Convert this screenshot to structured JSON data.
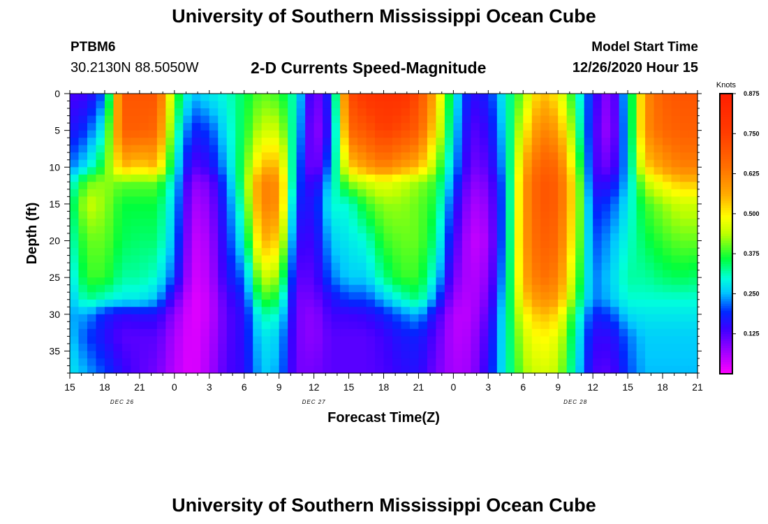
{
  "header": {
    "title": "University of Southern Mississippi Ocean Cube",
    "station_id": "PTBM6",
    "station_location": "30.2130N 88.5050W",
    "plot_title": "2-D Currents Speed-Magnitude",
    "model_start_label": "Model Start Time",
    "model_start_value": "12/26/2020 Hour 15"
  },
  "footer": {
    "title": "University of Southern Mississippi Ocean Cube"
  },
  "chart_data": {
    "type": "heatmap",
    "title": "2-D Currents Speed-Magnitude",
    "xlabel": "Forecast Time(Z)",
    "ylabel": "Depth (ft)",
    "x_range_hours": [
      0,
      54
    ],
    "x_ticks": [
      {
        "hour": 0,
        "label": "15"
      },
      {
        "hour": 3,
        "label": "18"
      },
      {
        "hour": 6,
        "label": "21"
      },
      {
        "hour": 9,
        "label": "0"
      },
      {
        "hour": 12,
        "label": "3"
      },
      {
        "hour": 15,
        "label": "6"
      },
      {
        "hour": 18,
        "label": "9"
      },
      {
        "hour": 21,
        "label": "12"
      },
      {
        "hour": 24,
        "label": "15"
      },
      {
        "hour": 27,
        "label": "18"
      },
      {
        "hour": 30,
        "label": "21"
      },
      {
        "hour": 33,
        "label": "0"
      },
      {
        "hour": 36,
        "label": "3"
      },
      {
        "hour": 39,
        "label": "6"
      },
      {
        "hour": 42,
        "label": "9"
      },
      {
        "hour": 45,
        "label": "12"
      },
      {
        "hour": 48,
        "label": "15"
      },
      {
        "hour": 51,
        "label": "18"
      },
      {
        "hour": 54,
        "label": "21"
      }
    ],
    "day_labels": [
      {
        "hour": 4.5,
        "label": "DEC  26"
      },
      {
        "hour": 21,
        "label": "DEC  27"
      },
      {
        "hour": 43.5,
        "label": "DEC  28"
      }
    ],
    "y_range_ft": [
      0,
      38
    ],
    "y_ticks": [
      0,
      5,
      10,
      15,
      20,
      25,
      30,
      35
    ],
    "colorbar": {
      "title": "Knots",
      "range": [
        0,
        0.875
      ],
      "ticks": [
        "0.125",
        "0.250",
        "0.375",
        "0.500",
        "0.625",
        "0.750",
        "0.875"
      ]
    },
    "grid": false,
    "speed_profiles_knots": {
      "depths_ft": [
        0,
        5,
        10,
        12,
        15,
        20,
        25,
        28,
        30,
        33,
        38
      ],
      "columns": [
        {
          "hour": 0.0,
          "speed": [
            0.13,
            0.16,
            0.22,
            0.28,
            0.32,
            0.3,
            0.27,
            0.25,
            0.24,
            0.26,
            0.28
          ]
        },
        {
          "hour": 1.5,
          "speed": [
            0.14,
            0.2,
            0.28,
            0.4,
            0.45,
            0.4,
            0.38,
            0.33,
            0.24,
            0.2,
            0.24
          ]
        },
        {
          "hour": 3.0,
          "speed": [
            0.22,
            0.3,
            0.38,
            0.42,
            0.42,
            0.4,
            0.38,
            0.3,
            0.18,
            0.16,
            0.2
          ]
        },
        {
          "hour": 4.5,
          "speed": [
            0.7,
            0.68,
            0.55,
            0.4,
            0.36,
            0.35,
            0.32,
            0.28,
            0.15,
            0.12,
            0.15
          ]
        },
        {
          "hour": 6.0,
          "speed": [
            0.7,
            0.68,
            0.52,
            0.4,
            0.36,
            0.34,
            0.32,
            0.28,
            0.16,
            0.12,
            0.12
          ]
        },
        {
          "hour": 7.5,
          "speed": [
            0.7,
            0.66,
            0.55,
            0.4,
            0.36,
            0.34,
            0.3,
            0.25,
            0.16,
            0.12,
            0.1
          ]
        },
        {
          "hour": 9.0,
          "speed": [
            0.4,
            0.35,
            0.3,
            0.28,
            0.26,
            0.24,
            0.2,
            0.12,
            0.08,
            0.06,
            0.05
          ]
        },
        {
          "hour": 10.5,
          "speed": [
            0.25,
            0.18,
            0.12,
            0.08,
            0.06,
            0.04,
            0.03,
            0.02,
            0.02,
            0.02,
            0.02
          ]
        },
        {
          "hour": 12.0,
          "speed": [
            0.28,
            0.2,
            0.15,
            0.1,
            0.08,
            0.06,
            0.05,
            0.04,
            0.04,
            0.05,
            0.06
          ]
        },
        {
          "hour": 13.5,
          "speed": [
            0.3,
            0.28,
            0.25,
            0.22,
            0.2,
            0.18,
            0.16,
            0.13,
            0.12,
            0.12,
            0.13
          ]
        },
        {
          "hour": 15.0,
          "speed": [
            0.35,
            0.36,
            0.38,
            0.38,
            0.35,
            0.3,
            0.22,
            0.18,
            0.16,
            0.16,
            0.15
          ]
        },
        {
          "hour": 16.5,
          "speed": [
            0.4,
            0.45,
            0.55,
            0.62,
            0.62,
            0.56,
            0.45,
            0.38,
            0.32,
            0.28,
            0.26
          ]
        },
        {
          "hour": 18.0,
          "speed": [
            0.38,
            0.45,
            0.55,
            0.6,
            0.6,
            0.52,
            0.42,
            0.35,
            0.3,
            0.26,
            0.24
          ]
        },
        {
          "hour": 19.5,
          "speed": [
            0.3,
            0.28,
            0.24,
            0.22,
            0.18,
            0.15,
            0.12,
            0.1,
            0.1,
            0.1,
            0.1
          ]
        },
        {
          "hour": 21.0,
          "speed": [
            0.08,
            0.06,
            0.07,
            0.12,
            0.16,
            0.14,
            0.12,
            0.1,
            0.08,
            0.08,
            0.1
          ]
        },
        {
          "hour": 22.5,
          "speed": [
            0.2,
            0.18,
            0.25,
            0.28,
            0.3,
            0.26,
            0.22,
            0.16,
            0.14,
            0.12,
            0.12
          ]
        },
        {
          "hour": 24.0,
          "speed": [
            0.72,
            0.66,
            0.52,
            0.42,
            0.3,
            0.28,
            0.26,
            0.2,
            0.14,
            0.12,
            0.12
          ]
        },
        {
          "hour": 25.5,
          "speed": [
            0.78,
            0.7,
            0.58,
            0.45,
            0.38,
            0.3,
            0.26,
            0.2,
            0.15,
            0.12,
            0.12
          ]
        },
        {
          "hour": 27.0,
          "speed": [
            0.8,
            0.75,
            0.62,
            0.48,
            0.42,
            0.38,
            0.33,
            0.25,
            0.18,
            0.14,
            0.13
          ]
        },
        {
          "hour": 28.5,
          "speed": [
            0.8,
            0.72,
            0.58,
            0.45,
            0.42,
            0.4,
            0.38,
            0.3,
            0.22,
            0.17,
            0.15
          ]
        },
        {
          "hour": 30.0,
          "speed": [
            0.72,
            0.68,
            0.55,
            0.42,
            0.4,
            0.4,
            0.38,
            0.34,
            0.25,
            0.18,
            0.16
          ]
        },
        {
          "hour": 31.5,
          "speed": [
            0.55,
            0.5,
            0.42,
            0.38,
            0.36,
            0.33,
            0.28,
            0.22,
            0.15,
            0.12,
            0.1
          ]
        },
        {
          "hour": 33.0,
          "speed": [
            0.3,
            0.28,
            0.25,
            0.22,
            0.18,
            0.14,
            0.1,
            0.07,
            0.05,
            0.05,
            0.06
          ]
        },
        {
          "hour": 34.5,
          "speed": [
            0.15,
            0.12,
            0.1,
            0.08,
            0.06,
            0.04,
            0.05,
            0.05,
            0.05,
            0.06,
            0.07
          ]
        },
        {
          "hour": 36.0,
          "speed": [
            0.18,
            0.15,
            0.12,
            0.1,
            0.08,
            0.06,
            0.08,
            0.1,
            0.12,
            0.14,
            0.16
          ]
        },
        {
          "hour": 37.5,
          "speed": [
            0.3,
            0.28,
            0.26,
            0.24,
            0.24,
            0.25,
            0.27,
            0.29,
            0.3,
            0.3,
            0.3
          ]
        },
        {
          "hour": 39.0,
          "speed": [
            0.42,
            0.48,
            0.55,
            0.58,
            0.58,
            0.58,
            0.56,
            0.52,
            0.48,
            0.45,
            0.42
          ]
        },
        {
          "hour": 40.5,
          "speed": [
            0.55,
            0.62,
            0.68,
            0.7,
            0.7,
            0.68,
            0.65,
            0.6,
            0.55,
            0.5,
            0.46
          ]
        },
        {
          "hour": 42.0,
          "speed": [
            0.5,
            0.58,
            0.66,
            0.68,
            0.68,
            0.66,
            0.62,
            0.58,
            0.52,
            0.47,
            0.44
          ]
        },
        {
          "hour": 43.5,
          "speed": [
            0.34,
            0.38,
            0.45,
            0.48,
            0.48,
            0.46,
            0.42,
            0.38,
            0.34,
            0.31,
            0.29
          ]
        },
        {
          "hour": 45.0,
          "speed": [
            0.16,
            0.14,
            0.14,
            0.15,
            0.18,
            0.2,
            0.22,
            0.22,
            0.18,
            0.15,
            0.13
          ]
        },
        {
          "hour": 46.5,
          "speed": [
            0.07,
            0.06,
            0.1,
            0.15,
            0.2,
            0.24,
            0.26,
            0.25,
            0.2,
            0.15,
            0.12
          ]
        },
        {
          "hour": 48.0,
          "speed": [
            0.28,
            0.27,
            0.26,
            0.26,
            0.28,
            0.3,
            0.32,
            0.3,
            0.27,
            0.22,
            0.2
          ]
        },
        {
          "hour": 49.5,
          "speed": [
            0.6,
            0.6,
            0.52,
            0.44,
            0.38,
            0.35,
            0.32,
            0.3,
            0.28,
            0.26,
            0.25
          ]
        },
        {
          "hour": 51.0,
          "speed": [
            0.68,
            0.66,
            0.58,
            0.5,
            0.42,
            0.38,
            0.34,
            0.3,
            0.28,
            0.26,
            0.25
          ]
        },
        {
          "hour": 52.5,
          "speed": [
            0.7,
            0.68,
            0.62,
            0.54,
            0.45,
            0.4,
            0.35,
            0.3,
            0.28,
            0.26,
            0.25
          ]
        },
        {
          "hour": 54.0,
          "speed": [
            0.7,
            0.68,
            0.62,
            0.54,
            0.45,
            0.4,
            0.34,
            0.3,
            0.28,
            0.26,
            0.25
          ]
        }
      ]
    }
  }
}
